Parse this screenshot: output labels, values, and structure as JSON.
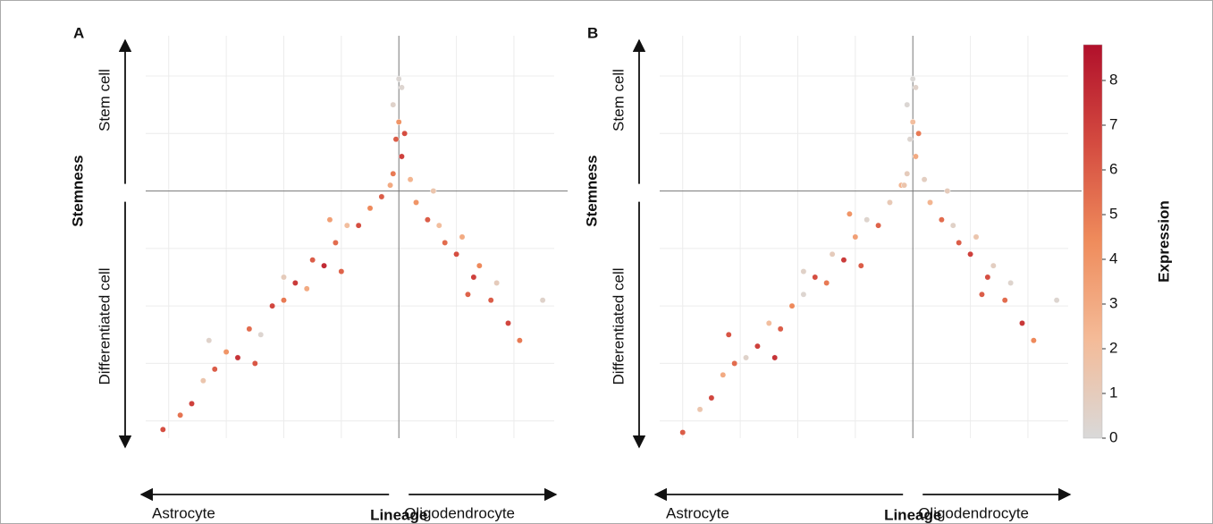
{
  "chart_data": [
    {
      "type": "scatter",
      "panel": "A",
      "xlabel": "Lineage",
      "ylabel": "Stemness",
      "y_top_label": "Stem cell",
      "y_bottom_label": "Differentiated cell",
      "x_left_label": "Astrocyte",
      "x_right_label": "Oligodendrocyte",
      "xlim": [
        -4.4,
        2.7
      ],
      "ylim": [
        -4.3,
        2.7
      ],
      "xgrid": [
        -4,
        -3,
        -2,
        -1,
        1,
        2
      ],
      "ygrid": [
        -4,
        -3,
        -2,
        -1,
        1,
        2
      ],
      "xline": 0,
      "yline": 0,
      "x": [
        -4.1,
        -3.8,
        -3.6,
        -3.4,
        -3.2,
        -3.0,
        -2.8,
        -2.6,
        -2.4,
        -2.2,
        -2.0,
        -1.8,
        -1.6,
        -1.5,
        -1.3,
        -1.1,
        -0.9,
        -0.7,
        -0.5,
        -0.3,
        -3.3,
        -2.0,
        -1.2,
        -2.5,
        -1.0,
        -0.1,
        0.05,
        -0.05,
        0.0,
        -0.1,
        0.05,
        -0.15,
        0.2,
        0.1,
        0.0,
        0.3,
        0.5,
        0.7,
        0.8,
        1.0,
        1.1,
        1.3,
        1.4,
        1.6,
        1.7,
        1.9,
        2.1,
        2.5,
        0.6,
        1.2
      ],
      "y": [
        -4.15,
        -3.9,
        -3.7,
        -3.3,
        -3.1,
        -2.8,
        -2.9,
        -2.4,
        -2.5,
        -2.0,
        -1.9,
        -1.6,
        -1.7,
        -1.2,
        -1.3,
        -0.9,
        -0.6,
        -0.6,
        -0.3,
        -0.1,
        -2.6,
        -1.5,
        -0.5,
        -3.0,
        -1.4,
        0.3,
        0.6,
        0.9,
        1.2,
        1.5,
        1.8,
        0.1,
        0.2,
        1.0,
        1.95,
        -0.2,
        -0.5,
        -0.6,
        -0.9,
        -1.1,
        -0.8,
        -1.5,
        -1.3,
        -1.9,
        -1.6,
        -2.3,
        -2.6,
        -1.9,
        0.0,
        -1.8
      ],
      "expression": [
        6.5,
        5.2,
        7,
        1.5,
        6,
        4,
        7.5,
        5.5,
        0.3,
        6.8,
        5,
        7.2,
        3,
        6,
        7.8,
        5.5,
        2,
        6.5,
        4.5,
        6,
        0.5,
        1,
        3.5,
        6.2,
        5.8,
        5,
        7,
        6,
        4,
        0.5,
        0.3,
        3,
        2.5,
        6.5,
        0.2,
        4,
        6,
        2,
        5.5,
        6.5,
        3,
        7,
        4.5,
        6,
        1,
        6.8,
        5,
        0.5,
        1.5,
        5.8
      ]
    },
    {
      "type": "scatter",
      "panel": "B",
      "xlabel": "Lineage",
      "ylabel": "Stemness",
      "y_top_label": "Stem cell",
      "y_bottom_label": "Differentiated cell",
      "x_left_label": "Astrocyte",
      "x_right_label": "Oligodendrocyte",
      "xlim": [
        -4.4,
        2.7
      ],
      "ylim": [
        -4.3,
        2.7
      ],
      "xgrid": [
        -4,
        -3,
        -2,
        -1,
        1,
        2
      ],
      "ygrid": [
        -4,
        -3,
        -2,
        -1,
        1,
        2
      ],
      "xline": 0,
      "yline": 0,
      "x": [
        -4.0,
        -3.7,
        -3.5,
        -3.3,
        -3.1,
        -2.9,
        -2.7,
        -2.5,
        -2.3,
        -2.1,
        -1.9,
        -1.7,
        -1.5,
        -1.4,
        -1.2,
        -1.0,
        -0.8,
        -0.6,
        -0.4,
        -0.2,
        -3.2,
        -1.9,
        -1.1,
        -2.4,
        -0.9,
        -0.1,
        0.05,
        -0.05,
        0.0,
        -0.1,
        0.05,
        -0.15,
        0.2,
        0.1,
        0.0,
        0.3,
        0.5,
        0.7,
        0.8,
        1.0,
        1.1,
        1.3,
        1.4,
        1.6,
        1.7,
        1.9,
        2.1,
        2.5,
        0.6,
        1.2
      ],
      "y": [
        -4.2,
        -3.8,
        -3.6,
        -3.2,
        -3.0,
        -2.9,
        -2.7,
        -2.3,
        -2.4,
        -2.0,
        -1.8,
        -1.5,
        -1.6,
        -1.1,
        -1.2,
        -0.8,
        -0.5,
        -0.6,
        -0.2,
        0.1,
        -2.5,
        -1.4,
        -0.4,
        -2.9,
        -1.3,
        0.3,
        0.6,
        0.9,
        1.2,
        1.5,
        1.8,
        0.1,
        0.2,
        1.0,
        1.95,
        -0.2,
        -0.5,
        -0.6,
        -0.9,
        -1.1,
        -0.8,
        -1.5,
        -1.3,
        -1.9,
        -1.6,
        -2.3,
        -2.6,
        -1.9,
        0.0,
        -1.8
      ],
      "expression": [
        6,
        1.5,
        6.8,
        3,
        5.5,
        0.5,
        7,
        2,
        6,
        4.5,
        0.3,
        6.5,
        5,
        1,
        7.2,
        3.5,
        0.4,
        5.8,
        1.2,
        2.5,
        6.3,
        0.6,
        4,
        7.5,
        6,
        1,
        3,
        0.3,
        2,
        0.2,
        0.5,
        1.5,
        0.8,
        5,
        0.1,
        2.5,
        5.5,
        0.6,
        6,
        7,
        1.5,
        6.5,
        0.8,
        5.5,
        0.4,
        7.3,
        4.5,
        0.3,
        1,
        6
      ],
      "colorbar_label": "Expression",
      "clim": [
        0,
        8.8
      ],
      "cticks": [
        0,
        1,
        2,
        3,
        4,
        5,
        6,
        7,
        8
      ],
      "colormap": [
        "#d9d9d9",
        "#f4bb98",
        "#ef8c5c",
        "#d44b40",
        "#b1102b"
      ]
    }
  ]
}
